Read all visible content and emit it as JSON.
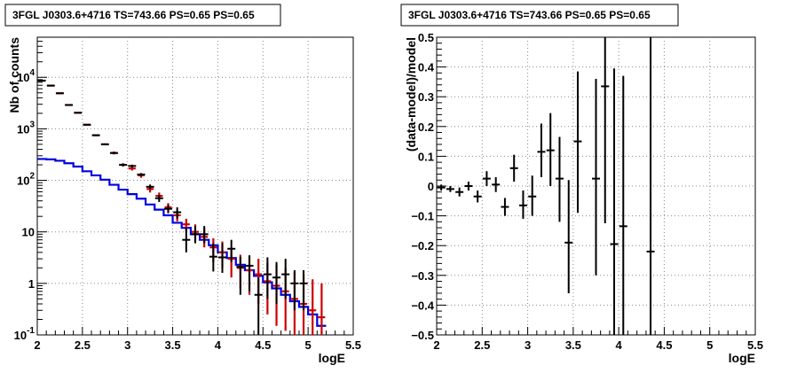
{
  "chart_data": [
    {
      "type": "scatter",
      "title": "3FGL J0303.6+4716 TS=743.66 PS=0.65 PS=0.65",
      "xlabel": "logE",
      "ylabel": "Nb of counts",
      "xlim": [
        2,
        5.5
      ],
      "ylim": [
        0.1,
        60000
      ],
      "ylog": true,
      "grid": true,
      "x_ticks": [
        "2",
        "2.5",
        "3",
        "3.5",
        "4",
        "4.5",
        "5",
        "5.5"
      ],
      "y_ticks": [
        {
          "v": 0.1,
          "base": "10",
          "exp": "-1"
        },
        {
          "v": 1,
          "base": "1",
          "exp": ""
        },
        {
          "v": 10,
          "base": "10",
          "exp": ""
        },
        {
          "v": 100,
          "base": "10",
          "exp": "2"
        },
        {
          "v": 1000,
          "base": "10",
          "exp": "3"
        },
        {
          "v": 10000,
          "base": "10",
          "exp": "4"
        }
      ],
      "colors": {
        "data": "#000000",
        "model": "#cc0000",
        "background": "#0000dd"
      },
      "series": [
        {
          "name": "",
          "kind": "data",
          "x": [
            2.05,
            2.15,
            2.25,
            2.35,
            2.45,
            2.55,
            2.65,
            2.75,
            2.85,
            2.95,
            3.05,
            3.15,
            3.25,
            3.35,
            3.45,
            3.55,
            3.65,
            3.75,
            3.85,
            3.95,
            4.05,
            4.15,
            4.25,
            4.35,
            4.45,
            4.55,
            4.65,
            4.75,
            4.85,
            4.95
          ],
          "y": [
            8600,
            6900,
            4900,
            2900,
            2050,
            1200,
            750,
            500,
            340,
            200,
            190,
            130,
            75,
            45,
            28,
            24,
            7,
            9,
            9,
            3.3,
            3.2,
            4.7,
            2.1,
            2.2,
            0.6,
            1.5,
            1.3,
            1.5,
            1,
            1
          ],
          "ylo": [
            8500,
            6800,
            4800,
            2850,
            2000,
            1160,
            720,
            480,
            320,
            188,
            178,
            122,
            67,
            38,
            23,
            18,
            4,
            6,
            6,
            1.7,
            1.6,
            2.6,
            0.6,
            0.7,
            0.1,
            0.5,
            0.4,
            0.5,
            0.3,
            0.3
          ],
          "yhi": [
            8700,
            7000,
            5000,
            2950,
            2100,
            1240,
            780,
            520,
            360,
            212,
            202,
            138,
            83,
            52,
            34,
            30,
            12,
            13,
            13,
            6,
            6,
            7,
            3.3,
            3.5,
            1.3,
            3.2,
            2.6,
            3,
            1.8,
            1.8
          ]
        },
        {
          "name": "",
          "kind": "model",
          "x": [
            2.05,
            2.15,
            2.25,
            2.35,
            2.45,
            2.55,
            2.65,
            2.75,
            2.85,
            2.95,
            3.05,
            3.15,
            3.25,
            3.35,
            3.45,
            3.55,
            3.65,
            3.75,
            3.85,
            3.95,
            4.05,
            4.15,
            4.25,
            4.35,
            4.45,
            4.55,
            4.65,
            4.75,
            4.85,
            4.95,
            5.05,
            5.15
          ],
          "y": [
            8600,
            6900,
            4900,
            2900,
            2050,
            1200,
            750,
            500,
            340,
            200,
            170,
            125,
            68,
            50,
            30,
            21,
            14,
            10,
            8,
            5,
            4,
            3,
            2,
            1.8,
            1.5,
            1.1,
            0.9,
            0.7,
            0.5,
            0.4,
            0.3,
            0.22
          ],
          "ylo": [
            8500,
            6800,
            4820,
            2850,
            2010,
            1170,
            730,
            480,
            320,
            185,
            155,
            112,
            58,
            42,
            24,
            16,
            10,
            6.5,
            5,
            2.6,
            2,
            1.3,
            0.8,
            0.6,
            0.4,
            0.25,
            0.15,
            0.12,
            0.1,
            0.1,
            0.1,
            0.1
          ],
          "yhi": [
            8700,
            7000,
            4980,
            2950,
            2090,
            1230,
            770,
            520,
            360,
            215,
            185,
            138,
            78,
            58,
            36,
            26,
            18,
            14,
            11.5,
            7.5,
            6.5,
            5,
            3.6,
            3.5,
            3,
            2.5,
            2.3,
            2,
            1.7,
            1.5,
            1.2,
            1
          ]
        },
        {
          "name": "",
          "kind": "background",
          "step": true,
          "x": [
            2,
            2.1,
            2.2,
            2.3,
            2.4,
            2.5,
            2.6,
            2.7,
            2.8,
            2.9,
            3,
            3.1,
            3.2,
            3.3,
            3.4,
            3.5,
            3.6,
            3.7,
            3.8,
            3.9,
            4,
            4.1,
            4.2,
            4.3,
            4.4,
            4.5,
            4.6,
            4.7,
            4.8,
            4.9,
            5,
            5.1,
            5.2
          ],
          "y": [
            260,
            255,
            240,
            215,
            185,
            150,
            125,
            103,
            82,
            66,
            54,
            44,
            34,
            27,
            21,
            15,
            12,
            9,
            7,
            5.5,
            4,
            3.1,
            2.3,
            1.8,
            1.4,
            1.05,
            0.8,
            0.6,
            0.45,
            0.35,
            0.25,
            0.15,
            0.1
          ]
        }
      ]
    },
    {
      "type": "scatter",
      "title": "3FGL J0303.6+4716 TS=743.66 PS=0.65 PS=0.65",
      "xlabel": "logE",
      "ylabel": "(data-model)/model",
      "xlim": [
        2,
        5.5
      ],
      "ylim": [
        -0.5,
        0.5
      ],
      "grid": true,
      "x_ticks": [
        "2",
        "2.5",
        "3",
        "3.5",
        "4",
        "4.5",
        "5",
        "5.5"
      ],
      "y_ticks": [
        "0.5",
        "0.4",
        "0.3",
        "0.2",
        "0.1",
        "0",
        "-0.1",
        "-0.2",
        "-0.3",
        "-0.4",
        "-0.5"
      ],
      "series": [
        {
          "name": "",
          "x": [
            2.05,
            2.15,
            2.25,
            2.35,
            2.45,
            2.55,
            2.65,
            2.75,
            2.85,
            2.95,
            3.05,
            3.15,
            3.25,
            3.35,
            3.45,
            3.55,
            3.75,
            3.85,
            3.95,
            4.05,
            4.35
          ],
          "y": [
            -0.005,
            -0.01,
            -0.02,
            0,
            -0.035,
            0.025,
            0.005,
            -0.07,
            0.06,
            -0.065,
            -0.035,
            0.115,
            0.12,
            0.025,
            -0.19,
            0.15,
            0.025,
            0.335,
            -0.195,
            -0.135,
            -0.22
          ],
          "ylo": [
            -0.015,
            -0.02,
            -0.035,
            -0.015,
            -0.055,
            0,
            -0.02,
            -0.1,
            0.015,
            -0.11,
            -0.1,
            0.03,
            0,
            -0.12,
            -0.36,
            -0.09,
            -0.3,
            -0.125,
            -0.5,
            -0.5,
            -0.5
          ],
          "yhi": [
            0.005,
            0,
            -0.005,
            0.015,
            -0.015,
            0.05,
            0.03,
            -0.04,
            0.105,
            -0.015,
            0.035,
            0.21,
            0.245,
            0.165,
            0.02,
            0.385,
            0.36,
            0.5,
            0.395,
            0.37,
            0.5
          ]
        }
      ]
    }
  ]
}
